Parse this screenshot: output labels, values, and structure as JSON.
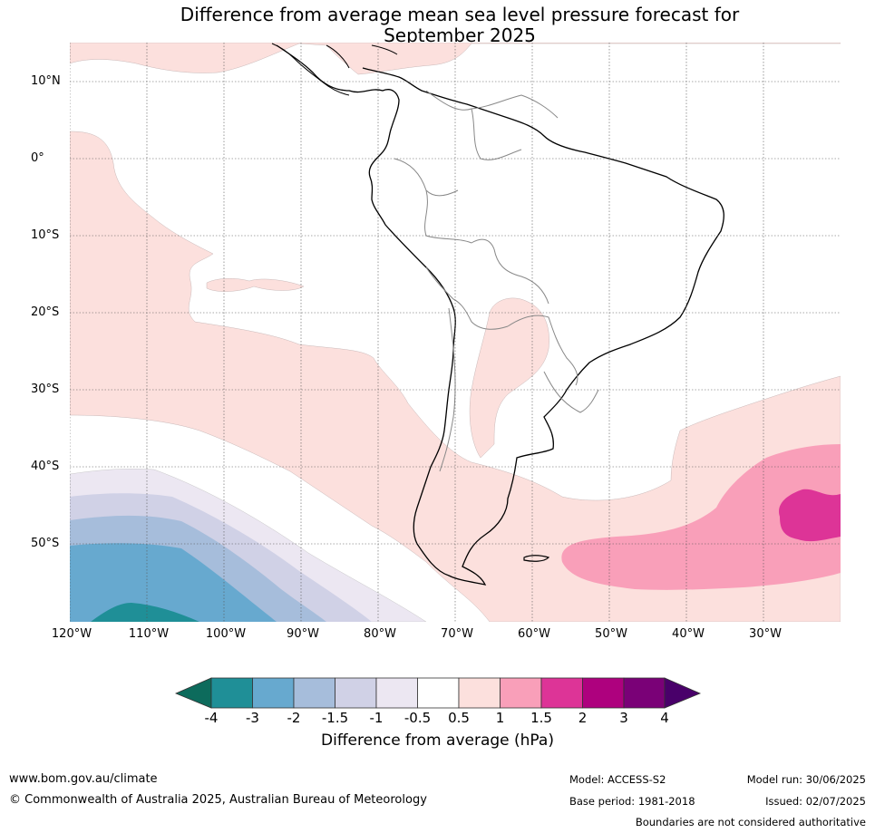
{
  "title_line1": "Difference from average mean sea level pressure forecast for",
  "title_line2": "September 2025",
  "latitude_labels": [
    "10°N",
    "0°",
    "10°S",
    "20°S",
    "30°S",
    "40°S",
    "50°S"
  ],
  "longitude_labels": [
    "120°W",
    "110°W",
    "100°W",
    "90°W",
    "80°W",
    "70°W",
    "60°W",
    "50°W",
    "40°W",
    "30°W"
  ],
  "colorbar": {
    "title": "Difference from average (hPa)",
    "ticks": [
      "-4",
      "-3",
      "-2",
      "-1.5",
      "-1",
      "-0.5",
      "0.5",
      "1",
      "1.5",
      "2",
      "3",
      "4"
    ],
    "colors": {
      "below_-4": "#0d6b5c",
      "-4_-3": "#1f8f97",
      "-3_-2": "#67a9cf",
      "-2_-1.5": "#a6bddb",
      "-1.5_-1": "#d0d1e6",
      "-1_-0.5": "#ece7f2",
      "-0.5_0.5": "#ffffff",
      "0.5_1": "#fce0dd",
      "1_1.5": "#f99fb9",
      "1.5_2": "#dd3497",
      "2_3": "#ae017e",
      "3_4": "#7a0177",
      "above_4": "#49006a"
    }
  },
  "footer": {
    "website": "www.bom.gov.au/climate",
    "copyright": "© Commonwealth of Australia 2025, Australian Bureau of Meteorology",
    "model": "Model: ACCESS-S2",
    "base_period": "Base period: 1981-2018",
    "model_run": "Model run: 30/06/2025",
    "issued": "Issued: 02/07/2025",
    "disclaimer": "Boundaries are not considered authoritative"
  }
}
